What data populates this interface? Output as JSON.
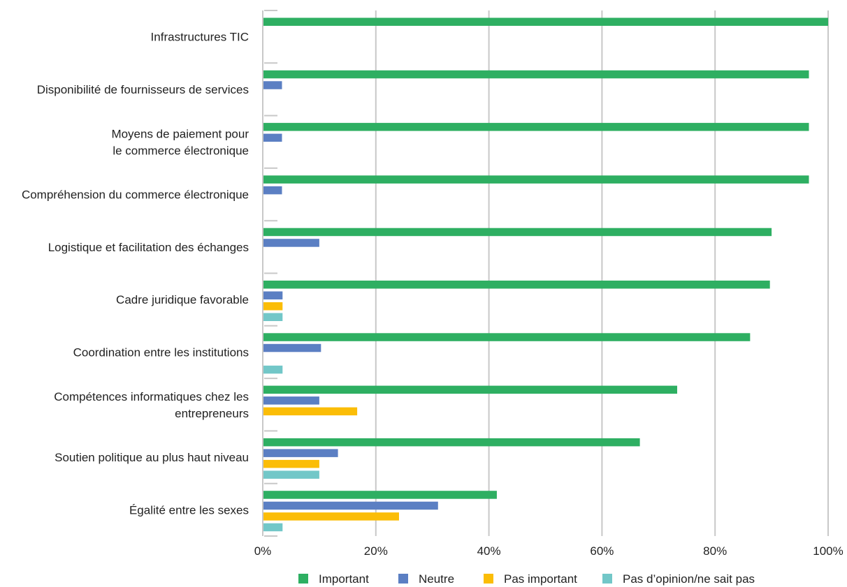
{
  "chart_data": {
    "type": "bar",
    "orientation": "horizontal",
    "title": "",
    "xlabel": "",
    "ylabel": "",
    "xlim": [
      0,
      100
    ],
    "x_ticks": [
      "0%",
      "20%",
      "40%",
      "60%",
      "80%",
      "100%"
    ],
    "grid": true,
    "legend_position": "bottom",
    "categories": [
      [
        "Infrastructures TIC"
      ],
      [
        "Disponibilité de fournisseurs de services"
      ],
      [
        "Moyens de paiement pour",
        "le commerce électronique"
      ],
      [
        "Compréhension du commerce électronique"
      ],
      [
        "Logistique et facilitation des échanges"
      ],
      [
        "Cadre juridique favorable"
      ],
      [
        "Coordination entre les institutions"
      ],
      [
        "Compétences informatiques chez les",
        "entrepreneurs"
      ],
      [
        "Soutien politique au plus haut niveau"
      ],
      [
        "Égalité entre les sexes"
      ]
    ],
    "series": [
      {
        "name": "Important",
        "color": "#2eaf62",
        "values": [
          100,
          96.6,
          96.6,
          96.6,
          90,
          89.7,
          86.2,
          73.3,
          66.7,
          41.4
        ]
      },
      {
        "name": "Neutre",
        "color": "#5b7fc3",
        "values": [
          0,
          3.4,
          3.4,
          3.4,
          10,
          3.5,
          10.3,
          10,
          13.3,
          31
        ]
      },
      {
        "name": "Pas important",
        "color": "#fbbd07",
        "values": [
          0,
          0,
          0,
          0,
          0,
          3.5,
          0,
          16.7,
          10,
          24.1
        ]
      },
      {
        "name": "Pas d’opinion/ne sait pas",
        "color": "#72c7c8",
        "values": [
          0,
          0,
          0,
          0,
          0,
          3.5,
          3.5,
          0,
          10,
          3.5
        ]
      }
    ]
  }
}
